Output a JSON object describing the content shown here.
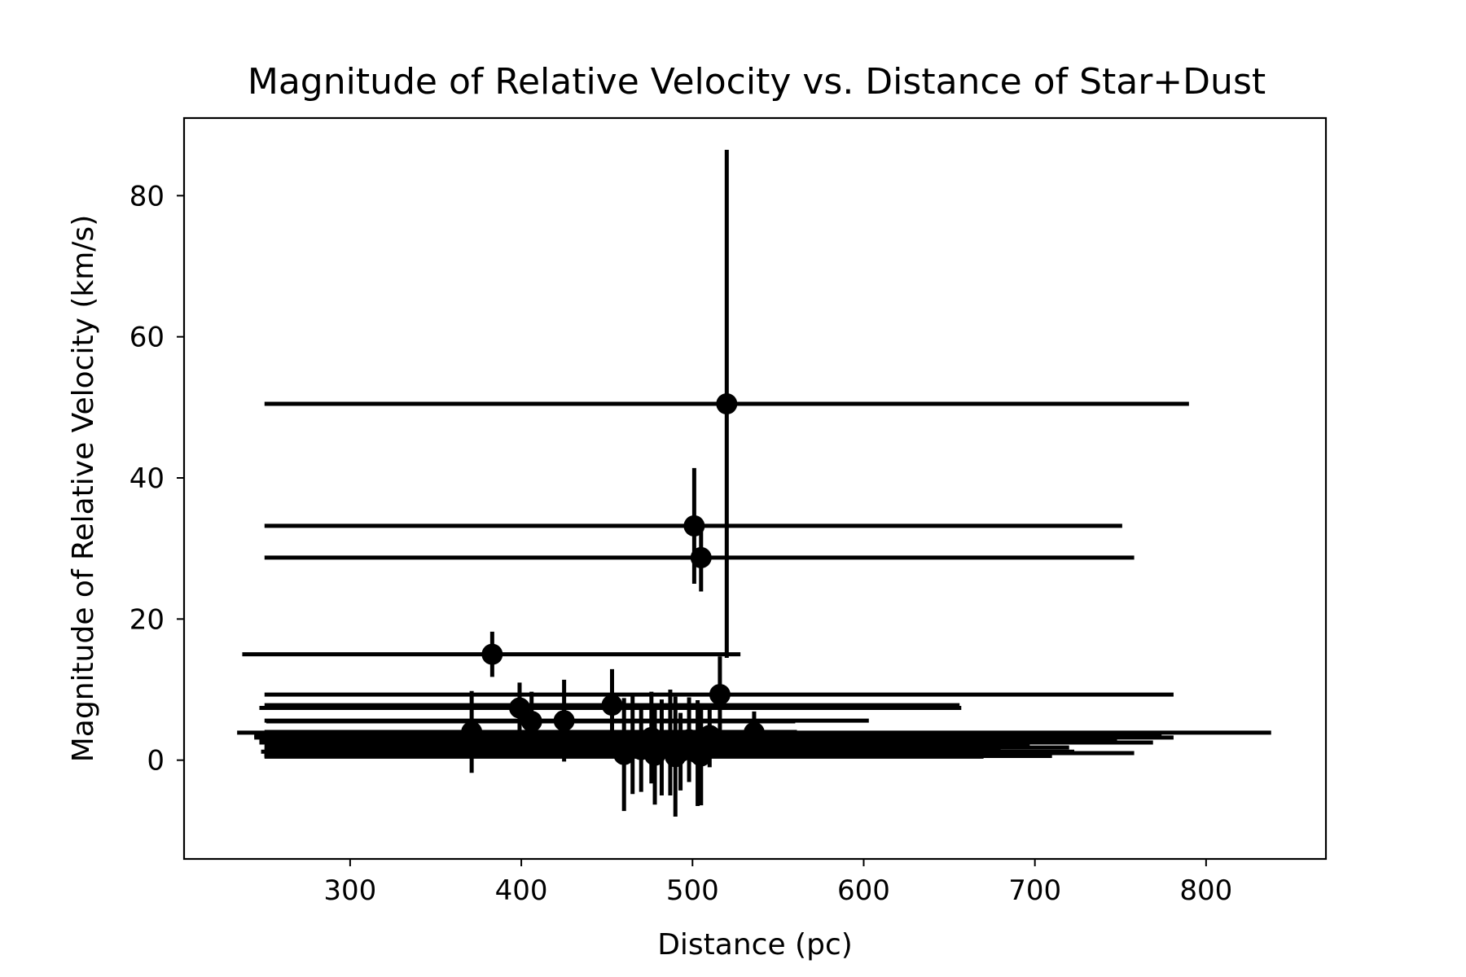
{
  "chart_data": {
    "type": "scatter",
    "title": "Magnitude of Relative Velocity vs. Distance of Star+Dust",
    "xlabel": "Distance (pc)",
    "ylabel": "Magnitude of Relative Velocity (km/s)",
    "xlim": [
      203,
      870
    ],
    "ylim": [
      -14,
      91
    ],
    "xticks": [
      300,
      400,
      500,
      600,
      700,
      800
    ],
    "xtick_labels": [
      "300",
      "400",
      "500",
      "600",
      "700",
      "800"
    ],
    "yticks": [
      0,
      20,
      40,
      60,
      80
    ],
    "ytick_labels": [
      "0",
      "20",
      "40",
      "60",
      "80"
    ],
    "grid": false,
    "legend": "none",
    "marker": "circle",
    "error_bars": "x and y",
    "color": "#000000",
    "points": [
      {
        "x": 520,
        "y": 50.5,
        "xerr_lo": 270,
        "xerr_hi": 270,
        "yerr_lo": 36,
        "yerr_hi": 36
      },
      {
        "x": 501,
        "y": 33.2,
        "xerr_lo": 251,
        "xerr_hi": 250,
        "yerr_lo": 8.2,
        "yerr_hi": 8.2
      },
      {
        "x": 505,
        "y": 28.7,
        "xerr_lo": 255,
        "xerr_hi": 253,
        "yerr_lo": 4.8,
        "yerr_hi": 4.8
      },
      {
        "x": 383,
        "y": 15.0,
        "xerr_lo": 146,
        "xerr_hi": 145,
        "yerr_lo": 3.2,
        "yerr_hi": 3.2
      },
      {
        "x": 516,
        "y": 9.3,
        "xerr_lo": 266,
        "xerr_hi": 265,
        "yerr_lo": 5.4,
        "yerr_hi": 5.4
      },
      {
        "x": 453,
        "y": 7.8,
        "xerr_lo": 203,
        "xerr_hi": 203,
        "yerr_lo": 5.1,
        "yerr_hi": 5.1
      },
      {
        "x": 399,
        "y": 7.4,
        "xerr_lo": 152,
        "xerr_hi": 258,
        "yerr_lo": 3.6,
        "yerr_hi": 3.6
      },
      {
        "x": 425,
        "y": 5.6,
        "xerr_lo": 175,
        "xerr_hi": 178,
        "yerr_lo": 5.8,
        "yerr_hi": 5.8
      },
      {
        "x": 406,
        "y": 5.5,
        "xerr_lo": 155,
        "xerr_hi": 154,
        "yerr_lo": 4.2,
        "yerr_hi": 4.2
      },
      {
        "x": 371,
        "y": 4.0,
        "xerr_lo": 121,
        "xerr_hi": 190,
        "yerr_lo": 5.8,
        "yerr_hi": 5.8
      },
      {
        "x": 536,
        "y": 3.9,
        "xerr_lo": 302,
        "xerr_hi": 302,
        "yerr_lo": 3.0,
        "yerr_hi": 3.0
      },
      {
        "x": 510,
        "y": 3.5,
        "xerr_lo": 266,
        "xerr_hi": 264,
        "yerr_lo": 4.5,
        "yerr_hi": 4.5
      },
      {
        "x": 476,
        "y": 3.2,
        "xerr_lo": 232,
        "xerr_hi": 305,
        "yerr_lo": 6.5,
        "yerr_hi": 6.5
      },
      {
        "x": 498,
        "y": 2.9,
        "xerr_lo": 251,
        "xerr_hi": 250,
        "yerr_lo": 6.0,
        "yerr_hi": 6.0
      },
      {
        "x": 487,
        "y": 2.5,
        "xerr_lo": 240,
        "xerr_hi": 282,
        "yerr_lo": 7.5,
        "yerr_hi": 7.5
      },
      {
        "x": 465,
        "y": 2.2,
        "xerr_lo": 215,
        "xerr_hi": 232,
        "yerr_lo": 7.0,
        "yerr_hi": 7.0
      },
      {
        "x": 482,
        "y": 1.8,
        "xerr_lo": 232,
        "xerr_hi": 238,
        "yerr_lo": 6.8,
        "yerr_hi": 6.8
      },
      {
        "x": 470,
        "y": 1.5,
        "xerr_lo": 220,
        "xerr_hi": 210,
        "yerr_lo": 6.0,
        "yerr_hi": 6.0
      },
      {
        "x": 493,
        "y": 1.2,
        "xerr_lo": 245,
        "xerr_hi": 230,
        "yerr_lo": 5.5,
        "yerr_hi": 5.5
      },
      {
        "x": 503,
        "y": 1.0,
        "xerr_lo": 253,
        "xerr_hi": 255,
        "yerr_lo": 7.5,
        "yerr_hi": 7.5
      },
      {
        "x": 460,
        "y": 0.8,
        "xerr_lo": 210,
        "xerr_hi": 212,
        "yerr_lo": 8.0,
        "yerr_hi": 8.0
      },
      {
        "x": 478,
        "y": 0.7,
        "xerr_lo": 228,
        "xerr_hi": 180,
        "yerr_lo": 7.0,
        "yerr_hi": 7.0
      },
      {
        "x": 505,
        "y": 0.6,
        "xerr_lo": 255,
        "xerr_hi": 205,
        "yerr_lo": 7.0,
        "yerr_hi": 7.0
      },
      {
        "x": 490,
        "y": 0.5,
        "xerr_lo": 240,
        "xerr_hi": 180,
        "yerr_lo": 8.5,
        "yerr_hi": 8.5
      }
    ]
  }
}
